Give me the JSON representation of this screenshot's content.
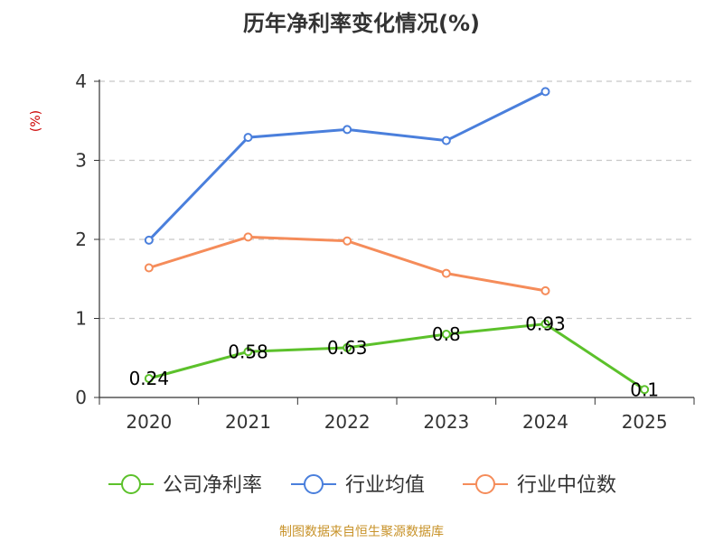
{
  "chart_data": {
    "type": "line",
    "title": "历年净利率变化情况(%)",
    "ylabel": "(%)",
    "xlabel": "",
    "categories": [
      "2020",
      "2021",
      "2022",
      "2023",
      "2024",
      "2025"
    ],
    "ylim": [
      0,
      4
    ],
    "yticks": [
      "0",
      "1",
      "2",
      "3",
      "4"
    ],
    "grid": true,
    "legend_position": "bottom",
    "series": [
      {
        "name": "公司净利率",
        "color": "#5cc12b",
        "values": [
          0.24,
          0.58,
          0.63,
          0.8,
          0.93,
          0.1
        ],
        "labels": [
          "0.24",
          "0.58",
          "0.63",
          "0.8",
          "0.93",
          "0.1"
        ]
      },
      {
        "name": "行业均值",
        "color": "#4a7fdc",
        "values": [
          1.99,
          3.29,
          3.39,
          3.25,
          3.87,
          null
        ]
      },
      {
        "name": "行业中位数",
        "color": "#f58c5a",
        "values": [
          1.64,
          2.03,
          1.98,
          1.57,
          1.35,
          null
        ]
      }
    ]
  },
  "source": "制图数据来自恒生聚源数据库"
}
